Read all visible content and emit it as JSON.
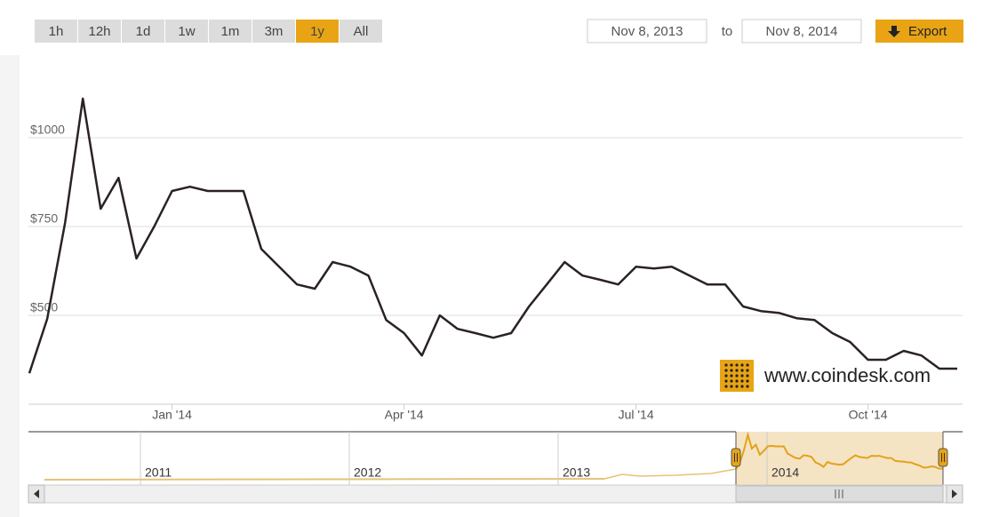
{
  "controls": {
    "ranges": [
      "1h",
      "12h",
      "1d",
      "1w",
      "1m",
      "3m",
      "1y",
      "All"
    ],
    "active_index": 6,
    "from": "Nov 8, 2013",
    "to_label": "to",
    "to": "Nov 8, 2014",
    "export": "Export"
  },
  "watermark": "www.coindesk.com",
  "navigator": {
    "labels": [
      "2011",
      "2012",
      "2013",
      "2014"
    ]
  },
  "chart_data": {
    "type": "line",
    "color": "#2b2222",
    "categories": [
      null,
      null,
      null,
      null,
      null,
      null,
      null,
      null,
      "Jan '14",
      null,
      null,
      null,
      null,
      null,
      null,
      null,
      null,
      null,
      null,
      null,
      null,
      "Apr '14",
      null,
      null,
      null,
      null,
      null,
      null,
      null,
      null,
      null,
      null,
      null,
      null,
      "Jul '14",
      null,
      null,
      null,
      null,
      null,
      null,
      null,
      null,
      null,
      null,
      null,
      null,
      "Oct '14",
      null,
      null,
      null,
      null,
      null
    ],
    "values": [
      337,
      490,
      760,
      1110,
      800,
      887,
      660,
      750,
      850,
      862,
      850,
      850,
      850,
      687,
      637,
      587,
      575,
      650,
      637,
      612,
      487,
      450,
      387,
      500,
      462,
      450,
      437,
      450,
      525,
      587,
      650,
      612,
      600,
      587,
      637,
      632,
      637,
      612,
      587,
      587,
      525,
      512,
      507,
      492,
      487,
      450,
      425,
      375,
      375,
      400,
      387,
      350,
      350
    ],
    "ylim": [
      250,
      1250
    ],
    "yticks": [
      {
        "value": 500,
        "label": "$500"
      },
      {
        "value": 750,
        "label": "$750"
      },
      {
        "value": 1000,
        "label": "$1000"
      }
    ],
    "grid": true
  }
}
